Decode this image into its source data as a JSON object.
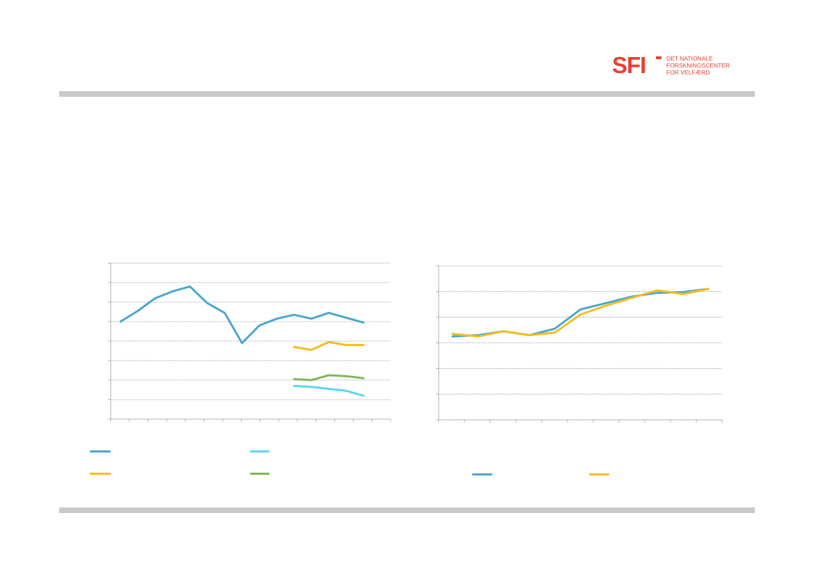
{
  "logo": {
    "mark": "SFI",
    "lines": [
      "DET NATIONALE",
      "FORSKNINGSCENTER",
      "FOR VELFÆRD"
    ]
  },
  "colors": {
    "blue": "#4aa6cf",
    "yellow": "#f5bd1f",
    "cyan": "#5bd6f2",
    "green": "#7fb65a",
    "rule": "#c8c8c8",
    "logo": "#e8402f"
  },
  "chart_data": [
    {
      "type": "line",
      "grid": true,
      "ylim": [
        0,
        8
      ],
      "x": [
        1,
        2,
        3,
        4,
        5,
        6,
        7,
        8,
        9,
        10,
        11,
        12,
        13,
        14,
        15,
        16
      ],
      "series": [
        {
          "color": "#4aa6cf",
          "values": [
            5.0,
            5.55,
            6.2,
            6.55,
            6.8,
            5.95,
            5.45,
            3.9,
            4.8,
            5.15,
            5.35,
            5.15,
            5.45,
            5.2,
            4.95,
            null
          ]
        },
        {
          "color": "#f5bd1f",
          "values": [
            null,
            null,
            null,
            null,
            null,
            null,
            null,
            null,
            null,
            null,
            3.7,
            3.55,
            3.95,
            3.8,
            3.8,
            null
          ]
        },
        {
          "color": "#7fb65a",
          "values": [
            null,
            null,
            null,
            null,
            null,
            null,
            null,
            null,
            null,
            null,
            2.05,
            2.0,
            2.25,
            2.2,
            2.1,
            null
          ]
        },
        {
          "color": "#5bd6f2",
          "values": [
            null,
            null,
            null,
            null,
            null,
            null,
            null,
            null,
            null,
            null,
            1.7,
            1.65,
            1.55,
            1.45,
            1.2,
            null
          ]
        }
      ]
    },
    {
      "type": "line",
      "grid": true,
      "ylim": [
        0,
        6
      ],
      "x": [
        1,
        2,
        3,
        4,
        5,
        6,
        7,
        8,
        9,
        10,
        11
      ],
      "series": [
        {
          "color": "#4aa6cf",
          "values": [
            3.25,
            3.3,
            3.45,
            3.3,
            3.55,
            4.3,
            4.55,
            4.8,
            4.95,
            4.98,
            5.1
          ]
        },
        {
          "color": "#f5bd1f",
          "values": [
            3.35,
            3.25,
            3.45,
            3.3,
            3.4,
            4.1,
            4.45,
            4.75,
            5.05,
            4.9,
            5.1
          ]
        }
      ]
    }
  ]
}
